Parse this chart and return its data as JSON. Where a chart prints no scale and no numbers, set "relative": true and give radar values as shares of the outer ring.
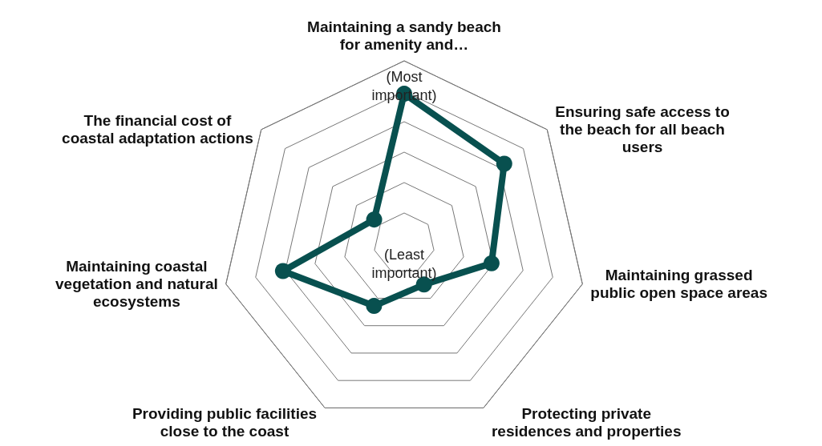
{
  "chart_data": {
    "type": "radar",
    "relative": true,
    "categories": [
      "Maintaining a sandy beach for amenity and…",
      "Ensuring safe access to the beach for all beach users",
      "Maintaining grassed public open space areas",
      "Protecting private residences and properties",
      "Providing public facilities close to the coast",
      "Maintaining coastal vegetation and natural ecosystems",
      "The financial cost of coastal adaptation actions"
    ],
    "series": [
      {
        "color": "#08504f",
        "values": [
          0.82,
          0.7,
          0.49,
          0.25,
          0.38,
          0.68,
          0.21
        ]
      }
    ],
    "annotations": [
      "(Most important)",
      "(Least important)"
    ],
    "marker": "circle",
    "line_style": "solid"
  }
}
